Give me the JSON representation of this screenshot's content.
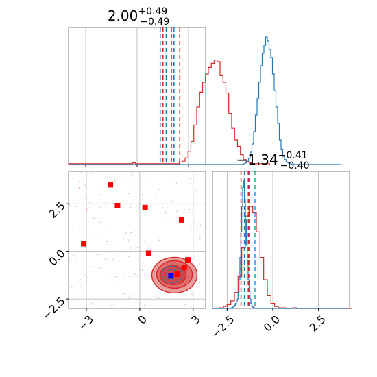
{
  "colors": {
    "red": "#d62728",
    "blue": "#1f77b4",
    "pure_red": "#ff0000",
    "pure_blue": "#0000ff",
    "grid": "#b0b0b0",
    "spine": "#808080",
    "fill": "#e27d7d"
  },
  "chart_data": [
    {
      "type": "histogram",
      "panel": "param1-marginal",
      "title": {
        "value": "2.00",
        "sup": "+0.49",
        "sub": "−0.49"
      },
      "xlim": [
        -4.0,
        4.0
      ],
      "grid": true,
      "red_quantiles": [
        1.51,
        2.0,
        2.49
      ],
      "blue_quantiles": [
        1.35,
        1.7,
        2.15
      ],
      "red_hist": {
        "x_start": -4.0,
        "bin_width": 0.17,
        "counts": [
          1,
          1,
          1,
          1,
          1,
          1,
          1,
          1,
          1,
          1,
          1,
          1,
          1,
          1,
          1,
          1,
          1,
          1,
          1,
          1,
          1,
          1,
          2,
          1,
          1,
          1,
          1,
          1,
          1,
          1,
          1,
          1,
          1,
          1,
          1,
          1,
          1,
          1,
          3,
          4,
          8,
          16,
          28,
          48,
          70,
          88,
          100,
          110,
          118,
          123,
          127,
          125,
          108,
          100,
          87,
          62,
          44,
          30,
          22,
          12,
          6,
          3,
          2,
          1,
          1,
          1,
          1,
          1,
          1
        ]
      },
      "blue_hist": {
        "x_start": -4.0,
        "bin_width": 0.1,
        "counts": [
          0,
          0,
          0,
          0,
          0,
          0,
          0,
          0,
          0,
          0,
          0,
          0,
          0,
          0,
          0,
          0,
          0,
          0,
          0,
          0,
          0,
          0,
          0,
          0,
          0,
          0,
          0,
          0,
          0,
          0,
          0,
          0,
          0,
          0,
          0,
          0,
          0,
          0,
          0,
          0,
          0,
          0,
          0,
          0,
          0,
          0,
          0,
          0,
          0,
          0,
          0,
          0,
          0,
          0,
          0,
          0,
          0,
          0,
          0,
          0,
          0,
          0,
          0,
          0,
          0,
          0,
          0,
          0,
          0,
          0,
          0,
          0,
          0,
          0,
          0,
          0,
          0,
          0,
          0,
          0,
          0,
          0,
          0,
          0,
          0,
          0,
          0,
          0,
          0,
          0,
          0,
          0,
          0,
          0,
          0,
          0,
          0,
          0,
          0,
          0,
          0,
          0,
          1,
          2,
          4,
          8,
          15,
          25,
          40,
          60,
          80,
          100,
          120,
          135,
          145,
          155,
          150,
          140,
          130,
          110,
          90,
          70,
          50,
          30,
          18,
          10,
          6,
          3,
          2,
          1,
          0,
          0,
          0,
          0,
          0,
          0,
          0,
          0,
          0,
          0,
          0,
          0,
          0,
          0,
          0,
          0,
          0,
          0,
          0,
          0,
          0,
          0,
          0,
          0,
          0,
          0,
          0,
          0,
          0
        ]
      }
    },
    {
      "type": "scatter",
      "panel": "param1-vs-param2",
      "xlim": [
        -4.0,
        3.7
      ],
      "ylim": [
        -3.0,
        4.2
      ],
      "xticks": [
        -3,
        0,
        3
      ],
      "xtick_labels": [
        "−3",
        "0",
        "3"
      ],
      "yticks": [
        -2.5,
        0.0,
        2.5
      ],
      "ytick_labels": [
        "−2.5",
        "0.0",
        "2.5"
      ],
      "grid": true,
      "points_red_squares": [
        [
          -3.15,
          0.4
        ],
        [
          -1.65,
          3.5
        ],
        [
          -1.25,
          2.4
        ],
        [
          0.3,
          2.3
        ],
        [
          0.5,
          -0.1
        ],
        [
          2.35,
          1.65
        ],
        [
          2.7,
          -0.45
        ],
        [
          2.5,
          -0.85
        ],
        [
          2.1,
          -1.2
        ]
      ],
      "point_blue_square": [
        1.75,
        -1.28
      ],
      "contour_center": [
        1.95,
        -1.25
      ]
    },
    {
      "type": "histogram",
      "panel": "param2-marginal",
      "title": {
        "value": "−1.34",
        "sup": "+0.41",
        "sub": "−0.40"
      },
      "xlim": [
        -3.3,
        4.2
      ],
      "xticks": [
        -2.5,
        0.0,
        2.5
      ],
      "xtick_labels": [
        "−2.5",
        "0.0",
        "2.5"
      ],
      "grid": true,
      "red_quantiles": [
        -1.74,
        -1.34,
        -0.93
      ],
      "blue_quantiles": [
        -1.55,
        -1.28,
        -1.02
      ],
      "red_hist": {
        "x_start": -3.3,
        "bin_width": 0.2,
        "counts": [
          0,
          0,
          1,
          3,
          6,
          12,
          25,
          50,
          95,
          145,
          160,
          150,
          120,
          80,
          45,
          20,
          8,
          3,
          1,
          1,
          0,
          0,
          1,
          0,
          0,
          0,
          0,
          0,
          0,
          0,
          0,
          0,
          0,
          0,
          0,
          0,
          0,
          0
        ]
      },
      "blue_hist": {
        "x_start": -3.3,
        "bin_width": 0.05,
        "counts": [
          0,
          0,
          0,
          0,
          0,
          0,
          0,
          0,
          0,
          0,
          0,
          0,
          0,
          0,
          0,
          0,
          0,
          0,
          0,
          0,
          0,
          1,
          2,
          3,
          5,
          8,
          10,
          15,
          25,
          45,
          80,
          120,
          160,
          190,
          200,
          170,
          140,
          100,
          70,
          45,
          28,
          15,
          8,
          4,
          2,
          1,
          0,
          0,
          0,
          0,
          0,
          0,
          0,
          0,
          0,
          0,
          0,
          0,
          0,
          0,
          0,
          0,
          0,
          0,
          0,
          0,
          0,
          0,
          0,
          0,
          0,
          0,
          0,
          0,
          0,
          0,
          0,
          0,
          0,
          0,
          0,
          0,
          0,
          0,
          0,
          0,
          0,
          0,
          0,
          0,
          0,
          0,
          0,
          0,
          0,
          0,
          0,
          0,
          0,
          0,
          0,
          0,
          0,
          0,
          0,
          0,
          0,
          0,
          0,
          0,
          0,
          0,
          0,
          0,
          0,
          0,
          0,
          0,
          0,
          0,
          0,
          0,
          0,
          0,
          0,
          0,
          0,
          0,
          0,
          0,
          0,
          0,
          0,
          0,
          0,
          0,
          0,
          0,
          0,
          0,
          0,
          0,
          0,
          0,
          0,
          0,
          0,
          0
        ]
      }
    }
  ]
}
